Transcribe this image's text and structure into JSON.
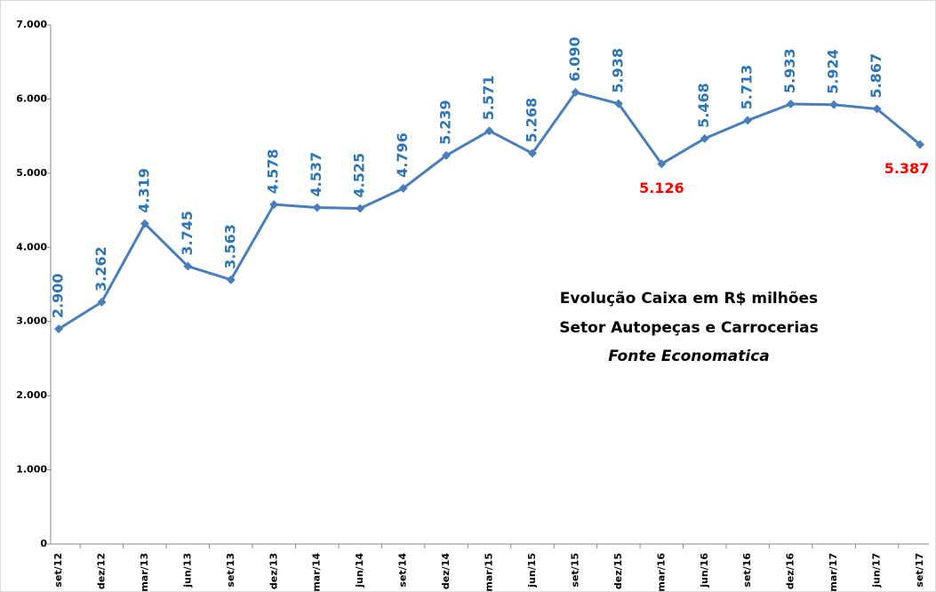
{
  "chart_data": {
    "type": "line",
    "title": "Evolução Caixa em R$ milhões",
    "subtitle": "Setor Autopeças e Carrocerias",
    "source": "Fonte Economatica",
    "categories": [
      "set/12",
      "dez/12",
      "mar/13",
      "jun/13",
      "set/13",
      "dez/13",
      "mar/14",
      "jun/14",
      "set/14",
      "dez/14",
      "mar/15",
      "jun/15",
      "set/15",
      "dez/15",
      "mar/16",
      "jun/16",
      "set/16",
      "dez/16",
      "mar/17",
      "jun/17",
      "set/17"
    ],
    "series": [
      {
        "name": "Caixa",
        "color": "#4a7ebb",
        "values": [
          2900,
          3262,
          4319,
          3745,
          3563,
          4578,
          4537,
          4525,
          4796,
          5239,
          5571,
          5268,
          6090,
          5938,
          5126,
          5468,
          5713,
          5933,
          5924,
          5867,
          5387
        ],
        "value_labels": [
          "2.900",
          "3.262",
          "4.319",
          "3.745",
          "3.563",
          "4.578",
          "4.537",
          "4.525",
          "4.796",
          "5.239",
          "5.571",
          "5.268",
          "6.090",
          "5.938",
          "5.126",
          "5.468",
          "5.713",
          "5.933",
          "5.924",
          "5.867",
          "5.387"
        ],
        "value_label_colors": [
          "#2e75b6",
          "#2e75b6",
          "#2e75b6",
          "#2e75b6",
          "#2e75b6",
          "#2e75b6",
          "#2e75b6",
          "#2e75b6",
          "#2e75b6",
          "#2e75b6",
          "#2e75b6",
          "#2e75b6",
          "#2e75b6",
          "#2e75b6",
          "#ff0000",
          "#2e75b6",
          "#2e75b6",
          "#2e75b6",
          "#2e75b6",
          "#2e75b6",
          "#ff0000"
        ]
      }
    ],
    "ylim": [
      0,
      7000
    ],
    "yticks": [
      0,
      {
        "value": 1000,
        "label": "1.000"
      },
      {
        "value": 2000,
        "label": "2.000"
      },
      {
        "value": 3000,
        "label": "3.000"
      },
      {
        "value": 4000,
        "label": "4.000"
      },
      {
        "value": 5000,
        "label": "5.000"
      },
      {
        "value": 6000,
        "label": "6.000"
      },
      {
        "value": 7000,
        "label": "7.000"
      }
    ],
    "source_color": "#00b050",
    "grid": false
  }
}
